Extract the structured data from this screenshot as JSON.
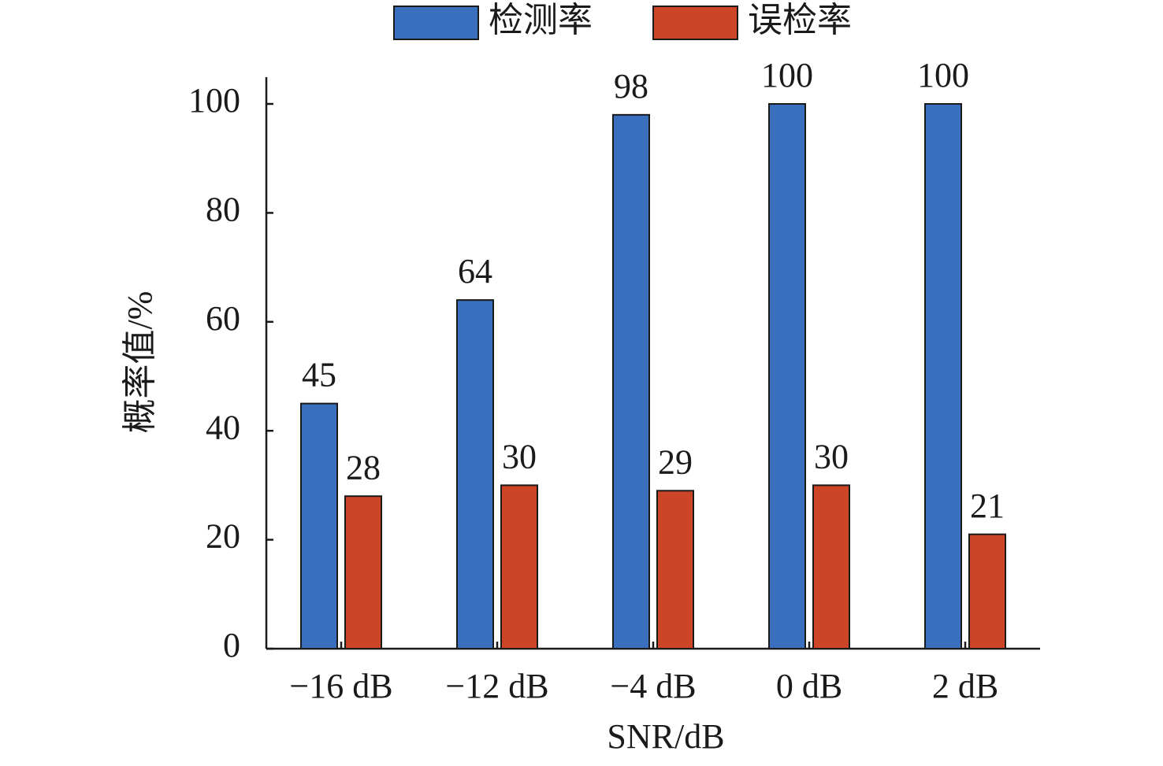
{
  "chart_data": {
    "type": "bar",
    "categories": [
      "−16 dB",
      "−12 dB",
      "−4 dB",
      "0 dB",
      "2 dB"
    ],
    "series": [
      {
        "name": "检测率",
        "color": "#3a6fbd",
        "values": [
          45,
          64,
          98,
          100,
          100
        ]
      },
      {
        "name": "误检率",
        "color": "#cc4527",
        "values": [
          28,
          30,
          29,
          30,
          21
        ]
      }
    ],
    "xlabel": "SNR/dB",
    "ylabel": "概率值/%",
    "ylim": [
      0,
      105
    ],
    "yticks": [
      0,
      20,
      40,
      60,
      80,
      100
    ],
    "legend": "top",
    "grid": false,
    "value_labels_shown": true
  }
}
